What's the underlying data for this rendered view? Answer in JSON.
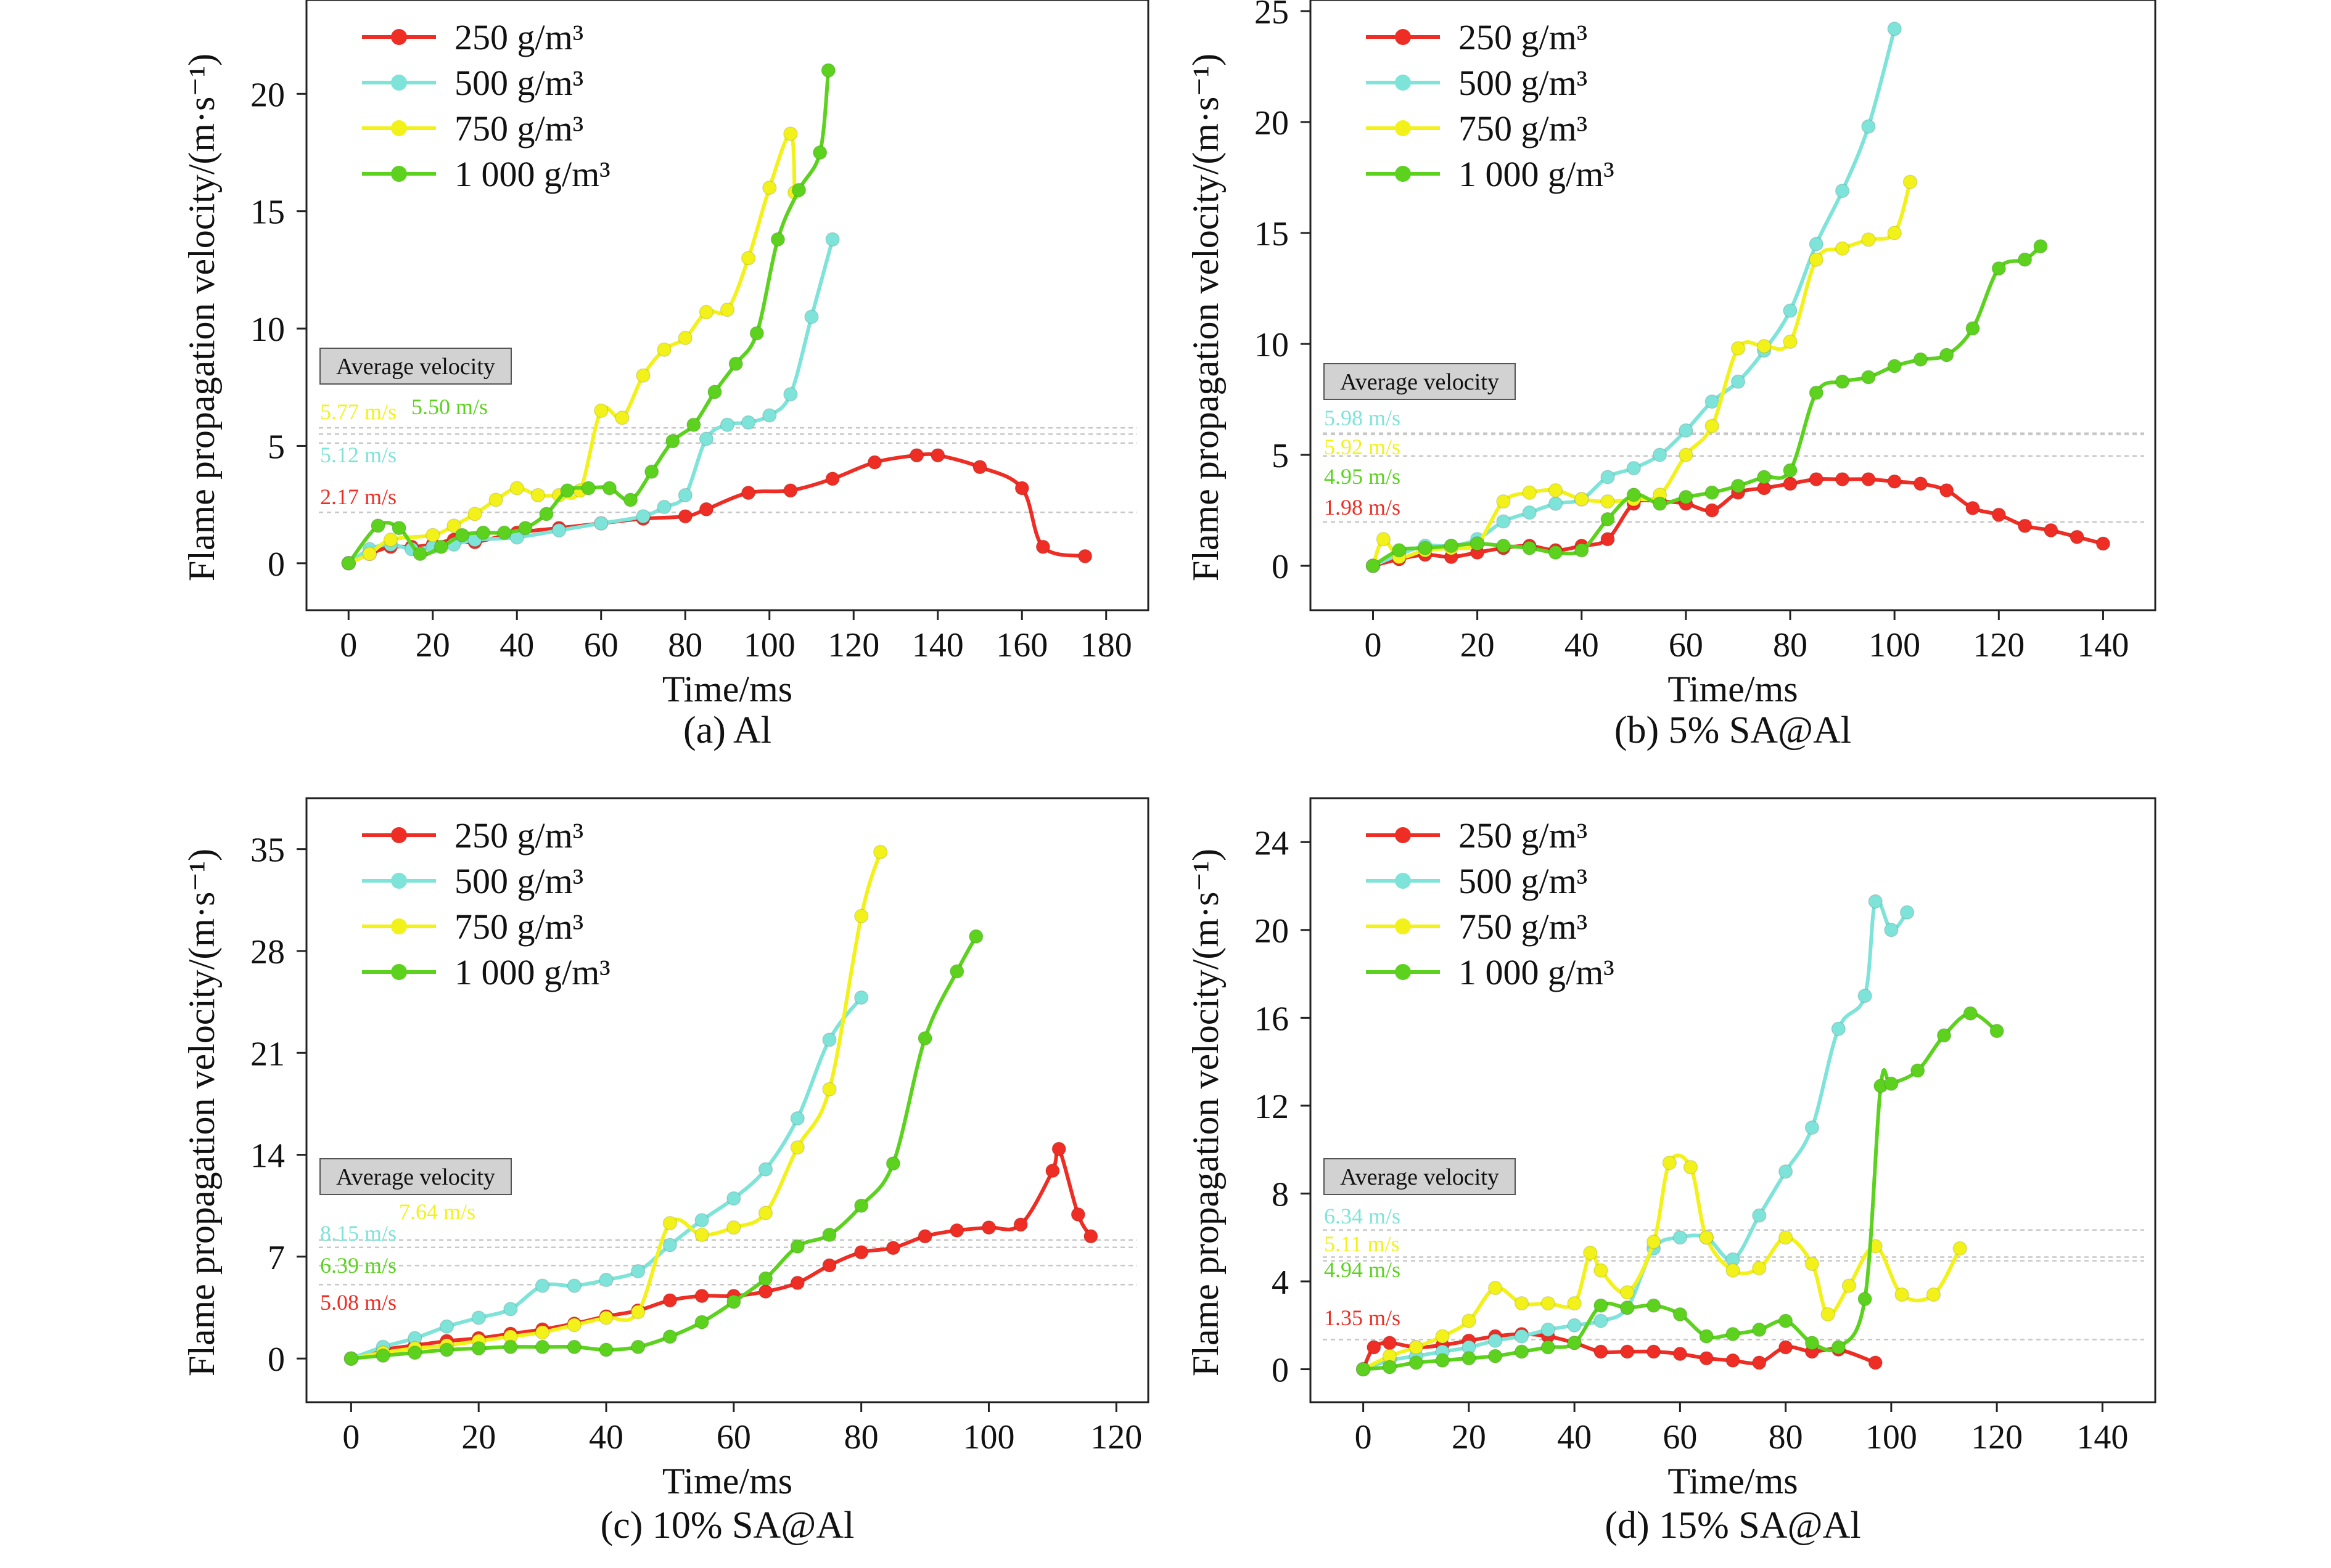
{
  "colors": {
    "250": "#ee2d24",
    "500": "#7ee3d8",
    "750": "#f2f21a",
    "1000": "#5cd21f",
    "axis": "#222222",
    "avg_box": "#d2d2d2",
    "avg_line": "#c8c8c8"
  },
  "common": {
    "ylabel": "Flame propagation velocity/(m·s⁻¹)",
    "xlabel": "Time/ms",
    "avg_box_label": "Average velocity"
  },
  "chart_data": [
    {
      "type": "line",
      "caption": "(a) Al",
      "xlim": [
        -10,
        190
      ],
      "ylim": [
        -2,
        24
      ],
      "xticks": [
        "0",
        "20",
        "40",
        "60",
        "80",
        "100",
        "120",
        "140",
        "160",
        "180"
      ],
      "yticks": [
        "0",
        "5",
        "10",
        "15",
        "20"
      ],
      "legend_position": "top-left",
      "series": [
        {
          "name": "250 g/m³",
          "color_key": "250",
          "x": [
            0,
            5,
            10,
            15,
            20,
            25,
            30,
            40,
            50,
            60,
            70,
            80,
            85,
            95,
            105,
            115,
            125,
            135,
            140,
            150,
            160,
            165,
            175
          ],
          "y": [
            0,
            0.4,
            0.7,
            0.7,
            0.8,
            1.0,
            0.9,
            1.3,
            1.5,
            1.7,
            1.9,
            2.0,
            2.3,
            3.0,
            3.1,
            3.6,
            4.3,
            4.6,
            4.6,
            4.1,
            3.2,
            0.7,
            0.3
          ]
        },
        {
          "name": "500 g/m³",
          "color_key": "500",
          "x": [
            0,
            5,
            10,
            15,
            20,
            25,
            30,
            40,
            50,
            60,
            70,
            75,
            80,
            85,
            90,
            95,
            100,
            105,
            110,
            115
          ],
          "y": [
            0,
            0.6,
            0.8,
            0.6,
            0.7,
            0.8,
            1.0,
            1.1,
            1.4,
            1.7,
            2.0,
            2.4,
            2.9,
            5.3,
            5.9,
            6.0,
            6.3,
            7.2,
            10.5,
            13.8
          ]
        },
        {
          "name": "750 g/m³",
          "color_key": "750",
          "x": [
            0,
            5,
            10,
            20,
            25,
            30,
            35,
            40,
            45,
            50,
            55,
            60,
            65,
            70,
            75,
            80,
            85,
            90,
            95,
            100,
            105,
            106
          ],
          "y": [
            0,
            0.4,
            1.0,
            1.2,
            1.6,
            2.1,
            2.7,
            3.2,
            2.9,
            2.9,
            3.1,
            6.5,
            6.2,
            8.0,
            9.1,
            9.6,
            10.7,
            10.8,
            13.0,
            16.0,
            18.3,
            15.8
          ]
        },
        {
          "name": "1 000 g/m³",
          "color_key": "1000",
          "x": [
            0,
            7,
            12,
            17,
            22,
            27,
            32,
            37,
            42,
            47,
            52,
            57,
            62,
            67,
            72,
            77,
            82,
            87,
            92,
            97,
            102,
            107,
            112,
            114
          ],
          "y": [
            0,
            1.6,
            1.5,
            0.4,
            0.7,
            1.2,
            1.3,
            1.3,
            1.5,
            2.1,
            3.1,
            3.2,
            3.2,
            2.7,
            3.9,
            5.2,
            5.9,
            7.3,
            8.5,
            9.8,
            13.8,
            15.9,
            17.5,
            21.0
          ]
        }
      ],
      "averages": [
        {
          "label": "5.77 m/s",
          "value": 5.77,
          "color_key": "750"
        },
        {
          "label": "5.50 m/s",
          "value": 5.5,
          "color_key": "1000"
        },
        {
          "label": "5.12 m/s",
          "value": 5.12,
          "color_key": "500"
        },
        {
          "label": "2.17 m/s",
          "value": 2.17,
          "color_key": "250"
        }
      ]
    },
    {
      "type": "line",
      "caption": "(b) 5% SA@Al",
      "xlim": [
        -12,
        150
      ],
      "ylim": [
        -2,
        25.5
      ],
      "xticks": [
        "0",
        "20",
        "40",
        "60",
        "80",
        "100",
        "120",
        "140"
      ],
      "yticks": [
        "0",
        "5",
        "10",
        "15",
        "20",
        "25"
      ],
      "legend_position": "top-left",
      "series": [
        {
          "name": "250 g/m³",
          "color_key": "250",
          "x": [
            0,
            5,
            10,
            15,
            20,
            25,
            30,
            35,
            40,
            45,
            50,
            55,
            60,
            65,
            70,
            75,
            80,
            85,
            90,
            95,
            100,
            105,
            110,
            115,
            120,
            125,
            130,
            135,
            140
          ],
          "y": [
            0,
            0.3,
            0.5,
            0.4,
            0.6,
            0.8,
            0.9,
            0.7,
            0.9,
            1.2,
            2.8,
            2.9,
            2.8,
            2.5,
            3.3,
            3.5,
            3.7,
            3.9,
            3.9,
            3.9,
            3.8,
            3.7,
            3.4,
            2.6,
            2.3,
            1.8,
            1.6,
            1.3,
            1.0
          ]
        },
        {
          "name": "500 g/m³",
          "color_key": "500",
          "x": [
            0,
            5,
            10,
            15,
            20,
            25,
            30,
            35,
            40,
            45,
            50,
            55,
            60,
            65,
            70,
            75,
            80,
            85,
            90,
            95,
            100
          ],
          "y": [
            0,
            0.5,
            0.9,
            0.9,
            1.2,
            2.0,
            2.4,
            2.8,
            3.0,
            4.0,
            4.4,
            5.0,
            6.1,
            7.4,
            8.3,
            9.7,
            11.5,
            14.5,
            16.9,
            19.8,
            24.2
          ]
        },
        {
          "name": "750 g/m³",
          "color_key": "750",
          "x": [
            0,
            2,
            5,
            10,
            15,
            20,
            25,
            30,
            35,
            40,
            45,
            50,
            55,
            60,
            65,
            70,
            75,
            80,
            85,
            90,
            95,
            100,
            103
          ],
          "y": [
            0,
            1.2,
            0.4,
            0.7,
            0.8,
            1.0,
            2.9,
            3.3,
            3.4,
            3.0,
            2.9,
            3.0,
            3.2,
            5.0,
            6.3,
            9.8,
            9.9,
            10.1,
            13.8,
            14.3,
            14.7,
            15.0,
            17.3
          ]
        },
        {
          "name": "1 000 g/m³",
          "color_key": "1000",
          "x": [
            0,
            5,
            10,
            15,
            20,
            25,
            30,
            35,
            40,
            45,
            50,
            55,
            60,
            65,
            70,
            75,
            80,
            85,
            90,
            95,
            100,
            105,
            110,
            115,
            120,
            125,
            128
          ],
          "y": [
            0,
            0.7,
            0.8,
            0.9,
            1.0,
            0.9,
            0.8,
            0.6,
            0.7,
            2.1,
            3.2,
            2.8,
            3.1,
            3.3,
            3.6,
            4.0,
            4.3,
            7.8,
            8.3,
            8.5,
            9.0,
            9.3,
            9.5,
            10.7,
            13.4,
            13.8,
            14.4
          ]
        }
      ],
      "averages": [
        {
          "label": "5.98 m/s",
          "value": 5.98,
          "color_key": "500"
        },
        {
          "label": "5.92 m/s",
          "value": 5.92,
          "color_key": "750"
        },
        {
          "label": "4.95 m/s",
          "value": 4.95,
          "color_key": "1000"
        },
        {
          "label": "1.98 m/s",
          "value": 1.98,
          "color_key": "250"
        }
      ]
    },
    {
      "type": "line",
      "caption": "(c) 10% SA@Al",
      "xlim": [
        -7,
        125
      ],
      "ylim": [
        -3,
        38.5
      ],
      "xticks": [
        "0",
        "20",
        "40",
        "60",
        "80",
        "100",
        "120"
      ],
      "yticks": [
        "0",
        "7",
        "14",
        "21",
        "28",
        "35"
      ],
      "legend_position": "top-left",
      "series": [
        {
          "name": "250 g/m³",
          "color_key": "250",
          "x": [
            0,
            5,
            10,
            15,
            20,
            25,
            30,
            35,
            40,
            45,
            50,
            55,
            60,
            65,
            70,
            75,
            80,
            85,
            90,
            95,
            100,
            105,
            110,
            111,
            114,
            116
          ],
          "y": [
            0,
            0.6,
            0.9,
            1.2,
            1.4,
            1.7,
            2.0,
            2.4,
            2.9,
            3.3,
            4.0,
            4.3,
            4.3,
            4.6,
            5.2,
            6.4,
            7.3,
            7.6,
            8.4,
            8.8,
            9.0,
            9.2,
            12.9,
            14.4,
            9.9,
            8.4
          ]
        },
        {
          "name": "500 g/m³",
          "color_key": "500",
          "x": [
            0,
            5,
            10,
            15,
            20,
            25,
            30,
            35,
            40,
            45,
            50,
            55,
            60,
            65,
            70,
            75,
            80
          ],
          "y": [
            0,
            0.8,
            1.4,
            2.2,
            2.8,
            3.4,
            5.0,
            5.0,
            5.4,
            6.0,
            7.8,
            9.5,
            11.0,
            13.0,
            16.5,
            21.9,
            24.8
          ]
        },
        {
          "name": "750 g/m³",
          "color_key": "750",
          "x": [
            0,
            5,
            10,
            15,
            20,
            25,
            30,
            35,
            40,
            45,
            50,
            55,
            60,
            65,
            70,
            75,
            80,
            83
          ],
          "y": [
            0,
            0.4,
            0.7,
            0.9,
            1.2,
            1.5,
            1.8,
            2.3,
            2.8,
            3.2,
            9.3,
            8.5,
            9.0,
            10.0,
            14.5,
            18.5,
            30.4,
            34.8
          ]
        },
        {
          "name": "1 000 g/m³",
          "color_key": "1000",
          "x": [
            0,
            5,
            10,
            15,
            20,
            25,
            30,
            35,
            40,
            45,
            50,
            55,
            60,
            65,
            70,
            75,
            80,
            85,
            90,
            95,
            98
          ],
          "y": [
            0,
            0.2,
            0.4,
            0.6,
            0.7,
            0.8,
            0.8,
            0.8,
            0.6,
            0.8,
            1.5,
            2.5,
            3.9,
            5.5,
            7.7,
            8.5,
            10.5,
            13.4,
            22.0,
            26.6,
            29.0
          ]
        }
      ],
      "averages": [
        {
          "label": "7.64 m/s",
          "value": 7.64,
          "color_key": "750"
        },
        {
          "label": "8.15 m/s",
          "value": 8.15,
          "color_key": "500"
        },
        {
          "label": "6.39 m/s",
          "value": 6.39,
          "color_key": "1000"
        },
        {
          "label": "5.08 m/s",
          "value": 5.08,
          "color_key": "250"
        }
      ]
    },
    {
      "type": "line",
      "caption": "(d) 15% SA@Al",
      "xlim": [
        -10,
        150
      ],
      "ylim": [
        -1.5,
        26
      ],
      "xticks": [
        "0",
        "20",
        "40",
        "60",
        "80",
        "100",
        "120",
        "140"
      ],
      "yticks": [
        "0",
        "4",
        "8",
        "12",
        "16",
        "20",
        "24"
      ],
      "legend_position": "top-left",
      "series": [
        {
          "name": "250 g/m³",
          "color_key": "250",
          "x": [
            0,
            2,
            5,
            10,
            15,
            20,
            25,
            30,
            35,
            40,
            45,
            50,
            55,
            60,
            65,
            70,
            75,
            80,
            85,
            90,
            97
          ],
          "y": [
            0,
            1.0,
            1.2,
            1.0,
            1.1,
            1.3,
            1.5,
            1.6,
            1.5,
            1.2,
            0.8,
            0.8,
            0.8,
            0.7,
            0.5,
            0.4,
            0.3,
            1.0,
            0.8,
            0.9,
            0.3
          ]
        },
        {
          "name": "500 g/m³",
          "color_key": "500",
          "x": [
            0,
            5,
            10,
            15,
            20,
            25,
            30,
            35,
            40,
            45,
            50,
            55,
            60,
            65,
            70,
            75,
            80,
            85,
            90,
            95,
            97,
            100,
            103
          ],
          "y": [
            0,
            0.4,
            0.6,
            0.8,
            1.0,
            1.3,
            1.5,
            1.8,
            2.0,
            2.2,
            2.8,
            5.5,
            6.0,
            6.0,
            5.0,
            7.0,
            9.0,
            11.0,
            15.5,
            17.0,
            21.3,
            20.0,
            20.8
          ]
        },
        {
          "name": "750 g/m³",
          "color_key": "750",
          "x": [
            0,
            5,
            10,
            15,
            20,
            25,
            30,
            35,
            40,
            43,
            45,
            50,
            55,
            58,
            62,
            65,
            70,
            75,
            80,
            85,
            88,
            92,
            97,
            102,
            108,
            113
          ],
          "y": [
            0,
            0.6,
            1.0,
            1.5,
            2.2,
            3.7,
            3.0,
            3.0,
            3.0,
            5.3,
            4.5,
            3.5,
            5.8,
            9.4,
            9.2,
            6.0,
            4.5,
            4.6,
            6.0,
            4.8,
            2.5,
            3.8,
            5.6,
            3.4,
            3.4,
            5.5
          ]
        },
        {
          "name": "1 000 g/m³",
          "color_key": "1000",
          "x": [
            0,
            5,
            10,
            15,
            20,
            25,
            30,
            35,
            40,
            45,
            50,
            55,
            60,
            65,
            70,
            75,
            80,
            85,
            90,
            95,
            98,
            100,
            105,
            110,
            115,
            120
          ],
          "y": [
            0,
            0.1,
            0.3,
            0.4,
            0.5,
            0.6,
            0.8,
            1.0,
            1.2,
            2.9,
            2.8,
            2.9,
            2.5,
            1.5,
            1.6,
            1.8,
            2.2,
            1.2,
            1.0,
            3.2,
            12.9,
            13.0,
            13.6,
            15.2,
            16.2,
            15.4
          ]
        }
      ],
      "averages": [
        {
          "label": "6.34 m/s",
          "value": 6.34,
          "color_key": "500"
        },
        {
          "label": "5.11 m/s",
          "value": 5.11,
          "color_key": "750"
        },
        {
          "label": "4.94 m/s",
          "value": 4.94,
          "color_key": "1000"
        },
        {
          "label": "1.35 m/s",
          "value": 1.35,
          "color_key": "250"
        }
      ]
    }
  ]
}
